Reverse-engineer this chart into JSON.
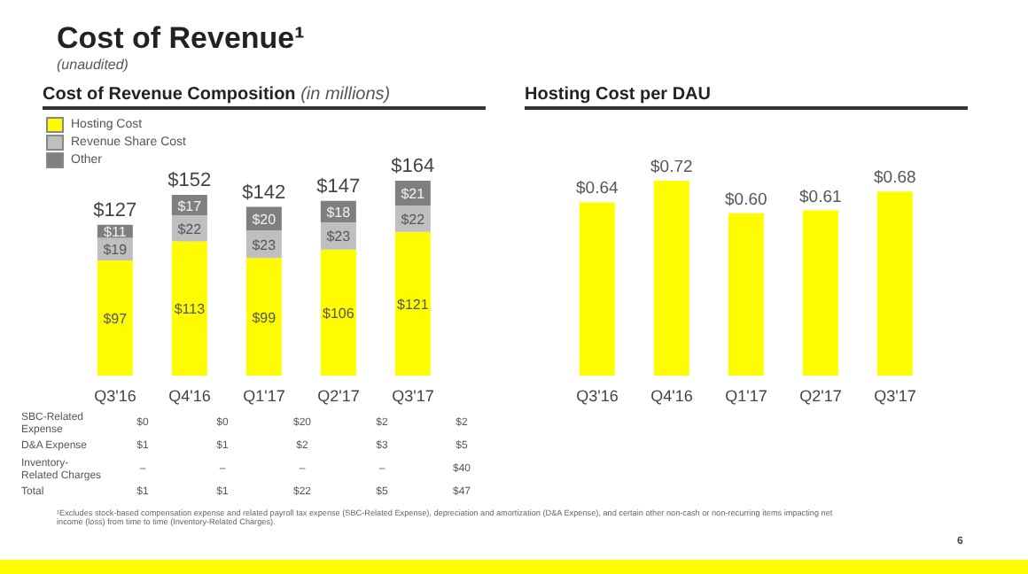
{
  "chart_data": [
    {
      "type": "bar",
      "title": "Cost of Revenue Composition",
      "subtitle": "(in millions)",
      "annotations": [
        "Cost of Revenue¹",
        "(unaudited)",
        "¹Excludes stock-based compensation expense and related payroll tax expense (SBC-Related Expense), depreciation and amortization (D&A Expense), and certain other non-cash or non-recurring items impacting net income (loss) from time to time (Inventory-Related Charges).",
        "6"
      ],
      "categories": [
        "Q3'16",
        "Q4'16",
        "Q1'17",
        "Q2'17",
        "Q3'17"
      ],
      "stacked": true,
      "legend": "top left",
      "totals": [
        "$127",
        "$152",
        "$142",
        "$147",
        "$164"
      ],
      "series": [
        {
          "name": "Hosting Cost",
          "color": "#fffc00",
          "values": [
            97,
            113,
            99,
            106,
            121
          ],
          "value_labels": [
            "$97",
            "$113",
            "$99",
            "$106",
            "$121"
          ]
        },
        {
          "name": "Revenue Share Cost",
          "color": "#bfbfbf",
          "values": [
            19,
            22,
            23,
            23,
            22
          ],
          "value_labels": [
            "$19",
            "$22",
            "$23",
            "$23",
            "$22"
          ]
        },
        {
          "name": "Other",
          "color": "#7f7f7f",
          "values": [
            11,
            17,
            20,
            18,
            21
          ],
          "value_labels": [
            "$11",
            "$17",
            "$20",
            "$18",
            "$21"
          ]
        }
      ]
    },
    {
      "type": "other",
      "annotations": [
        "SBC-Related Expense",
        "$0",
        "$0",
        "$20",
        "$2",
        "$2",
        "D&A Expense",
        "$1",
        "$1",
        "$2",
        "$3",
        "$5",
        "Inventory-Related Charges",
        "–",
        "–",
        "–",
        "–",
        "$40",
        "Total",
        "$1",
        "$1",
        "$22",
        "$5",
        "$47"
      ]
    },
    {
      "type": "bar",
      "title": "Hosting Cost per DAU",
      "categories": [
        "Q3'16",
        "Q4'16",
        "Q1'17",
        "Q2'17",
        "Q3'17"
      ],
      "color": "#fffc00",
      "values": [
        0.64,
        0.72,
        0.6,
        0.61,
        0.68
      ],
      "value_labels": [
        "$0.64",
        "$0.72",
        "$0.60",
        "$0.61",
        "$0.68"
      ]
    }
  ]
}
